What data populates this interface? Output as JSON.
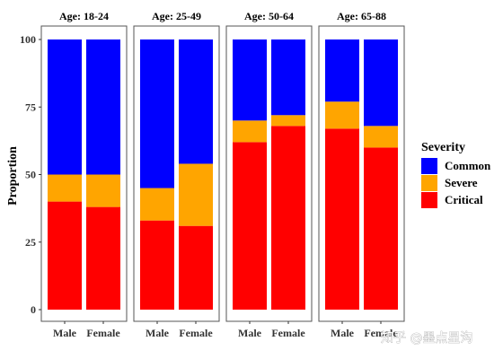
{
  "chart_data": {
    "type": "bar",
    "stacked": true,
    "ylabel": "Proportion",
    "ylim": [
      0,
      100
    ],
    "yticks": [
      0,
      25,
      50,
      75,
      100
    ],
    "categories": [
      "Male",
      "Female"
    ],
    "facets": [
      {
        "title": "Age: 18-24",
        "critical": [
          40,
          38
        ],
        "severe": [
          10,
          12
        ],
        "common": [
          50,
          50
        ]
      },
      {
        "title": "Age: 25-49",
        "critical": [
          33,
          31
        ],
        "severe": [
          12,
          23
        ],
        "common": [
          55,
          46
        ]
      },
      {
        "title": "Age: 50-64",
        "critical": [
          62,
          68
        ],
        "severe": [
          8,
          4
        ],
        "common": [
          30,
          28
        ]
      },
      {
        "title": "Age: 65-88",
        "critical": [
          67,
          60
        ],
        "severe": [
          10,
          8
        ],
        "common": [
          23,
          32
        ]
      }
    ],
    "legend": {
      "title": "Severity",
      "position": "right",
      "items": [
        {
          "key": "common",
          "label": "Common",
          "color": "#0000FF"
        },
        {
          "key": "severe",
          "label": "Severe",
          "color": "#FFA500"
        },
        {
          "key": "critical",
          "label": "Critical",
          "color": "#FF0000"
        }
      ]
    },
    "grid": false
  },
  "watermark": "知乎 @墨点星沟"
}
